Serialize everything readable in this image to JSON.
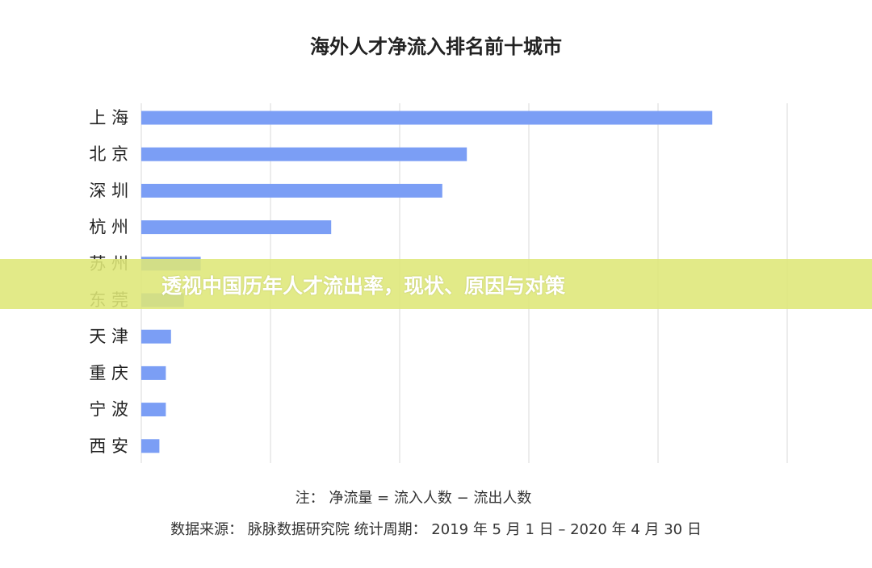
{
  "chart_data": {
    "type": "bar",
    "orientation": "horizontal",
    "title": "海外人才净流入排名前十城市",
    "categories": [
      "上 海",
      "北 京",
      "深 圳",
      "杭 州",
      "苏 州",
      "东 莞",
      "天 津",
      "重 庆",
      "宁 波",
      "西 安"
    ],
    "values": [
      44.2,
      25.2,
      23.3,
      14.7,
      4.6,
      3.3,
      2.3,
      1.9,
      1.9,
      1.4
    ],
    "xlim": [
      0,
      50
    ],
    "grid": true,
    "bar_color": "#7b9ef5",
    "note": "注：  净流量 = 流入人数 − 流出人数",
    "source": "数据来源：  脉脉数据研究院         统计周期：  2019 年 5 月 1 日 – 2020 年 4 月 30 日"
  },
  "banner": {
    "text": "透视中国历年人才流出率，现状、原因与对策",
    "color": "#dee778"
  }
}
